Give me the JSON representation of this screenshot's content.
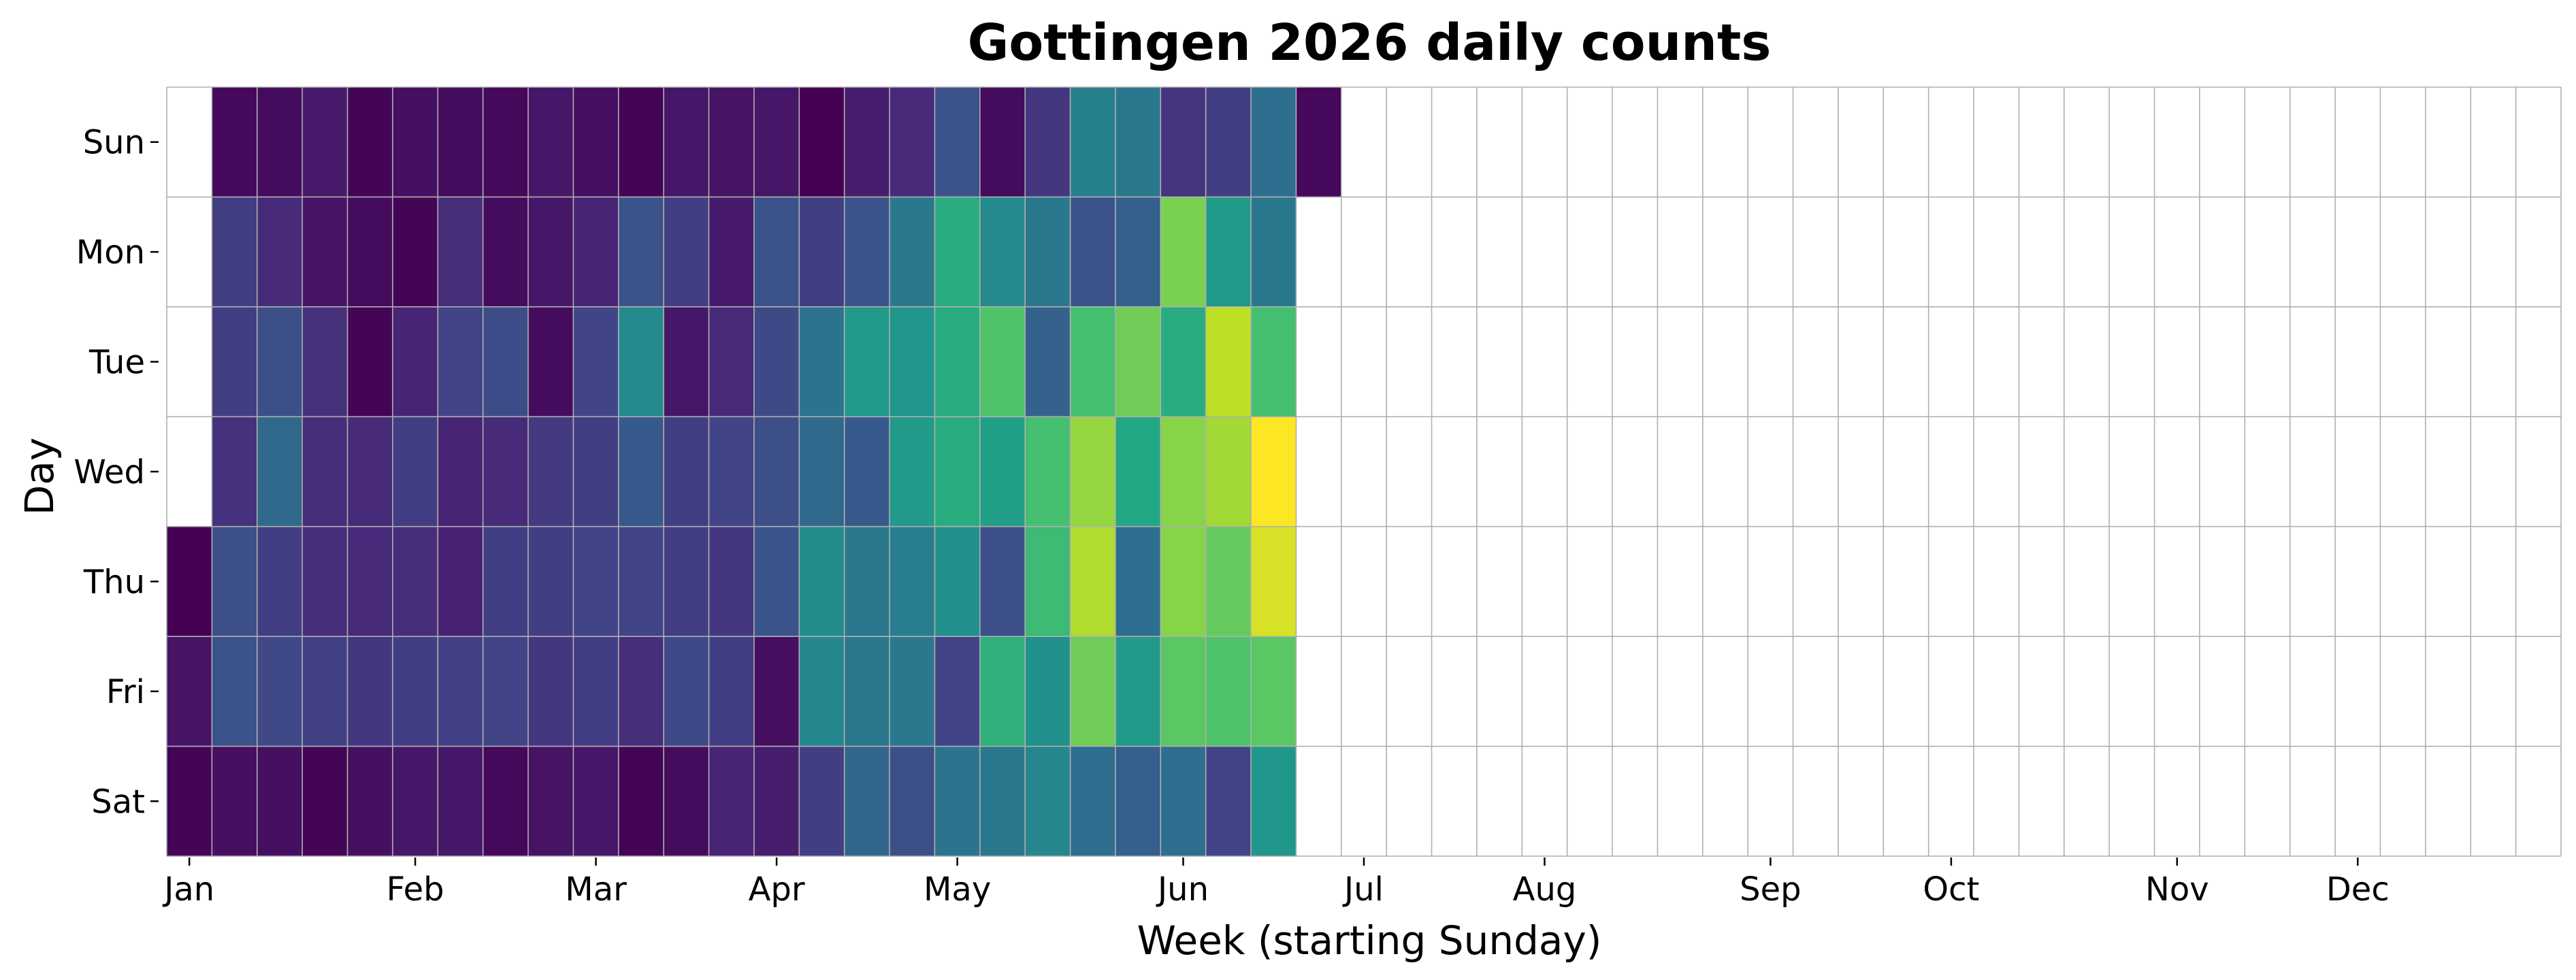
{
  "chart_data": {
    "type": "heatmap",
    "title": "Gottingen 2026 daily counts",
    "xlabel": "Week (starting Sunday)",
    "ylabel": "Day",
    "y_categories": [
      "Sun",
      "Mon",
      "Tue",
      "Wed",
      "Thu",
      "Fri",
      "Sat"
    ],
    "x_tick_labels": [
      "Jan",
      "Feb",
      "Mar",
      "Apr",
      "May",
      "Jun",
      "Jul",
      "Aug",
      "Sep",
      "Oct",
      "Nov",
      "Dec"
    ],
    "x_tick_weeks": [
      0.5,
      5.5,
      9.5,
      13.5,
      17.5,
      22.5,
      26.5,
      30.5,
      35.5,
      39.5,
      44.5,
      48.5
    ],
    "colormap": "viridis",
    "grid": true,
    "n_weeks": 53,
    "intensity": [
      [
        null,
        0.02,
        0.03,
        0.07,
        0.01,
        0.04,
        0.03,
        0.02,
        0.06,
        0.04,
        0.01,
        0.06,
        0.05,
        0.06,
        0.0,
        0.08,
        0.12,
        0.25,
        0.03,
        0.16,
        0.43,
        0.4,
        0.15,
        0.18,
        0.36,
        0.02
      ],
      [
        null,
        0.18,
        0.12,
        0.05,
        0.03,
        0.01,
        0.13,
        0.03,
        0.06,
        0.1,
        0.25,
        0.18,
        0.07,
        0.25,
        0.18,
        0.26,
        0.4,
        0.62,
        0.47,
        0.4,
        0.26,
        0.3,
        0.8,
        0.54,
        0.4
      ],
      [
        null,
        0.18,
        0.24,
        0.14,
        0.01,
        0.1,
        0.2,
        0.23,
        0.03,
        0.2,
        0.47,
        0.06,
        0.12,
        0.22,
        0.38,
        0.54,
        0.52,
        0.62,
        0.72,
        0.31,
        0.7,
        0.78,
        0.62,
        0.9,
        0.7
      ],
      [
        null,
        0.14,
        0.34,
        0.13,
        0.12,
        0.18,
        0.1,
        0.12,
        0.17,
        0.18,
        0.28,
        0.18,
        0.2,
        0.24,
        0.34,
        0.28,
        0.54,
        0.62,
        0.56,
        0.7,
        0.84,
        0.6,
        0.82,
        0.86,
        1.0
      ],
      [
        0.0,
        0.24,
        0.18,
        0.13,
        0.12,
        0.13,
        0.09,
        0.18,
        0.18,
        0.2,
        0.2,
        0.18,
        0.16,
        0.26,
        0.48,
        0.4,
        0.42,
        0.5,
        0.24,
        0.68,
        0.88,
        0.36,
        0.82,
        0.76,
        0.94
      ],
      [
        0.05,
        0.25,
        0.22,
        0.19,
        0.16,
        0.18,
        0.19,
        0.2,
        0.16,
        0.18,
        0.13,
        0.22,
        0.18,
        0.04,
        0.46,
        0.4,
        0.4,
        0.2,
        0.64,
        0.5,
        0.78,
        0.54,
        0.74,
        0.72,
        0.74
      ],
      [
        0.01,
        0.04,
        0.04,
        0.01,
        0.04,
        0.06,
        0.06,
        0.02,
        0.05,
        0.06,
        0.01,
        0.03,
        0.1,
        0.08,
        0.18,
        0.33,
        0.24,
        0.38,
        0.4,
        0.46,
        0.36,
        0.3,
        0.36,
        0.2,
        0.52
      ]
    ]
  }
}
